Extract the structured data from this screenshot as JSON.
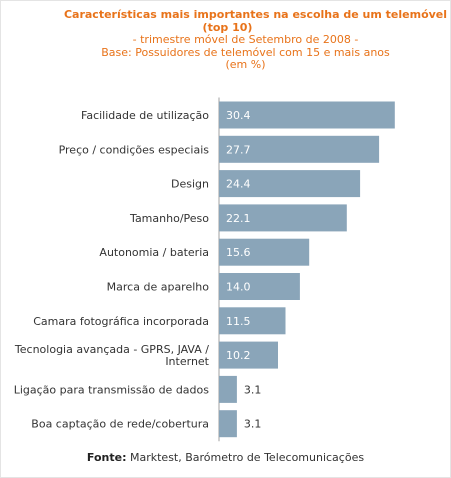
{
  "header": {
    "title_line1": "Características mais importantes na escolha de um telemóvel",
    "title_line2": "(top 10)",
    "subtitle": "- trimestre móvel de Setembro de 2008 -",
    "base": "Base: Possuidores de telemóvel com 15 e mais anos",
    "unit": "(em %)"
  },
  "footer": {
    "source_label": "Fonte:",
    "source_text": "Marktest, Barómetro de Telecomunicações"
  },
  "colors": {
    "bar": "#8aa5b9",
    "title": "#e8731a",
    "label": "#333333",
    "value_inside": "#ffffff",
    "value_outside": "#333333",
    "axis": "#a0a0a0"
  },
  "chart_data": {
    "type": "bar",
    "orientation": "horizontal",
    "categories": [
      "Facilidade de utilização",
      "Preço / condições especiais",
      "Design",
      "Tamanho/Peso",
      "Autonomia / bateria",
      "Marca de aparelho",
      "Camara fotográfica incorporada",
      "Tecnologia avançada - GPRS, JAVA / Internet",
      "Ligação para transmissão de dados",
      "Boa captação de rede/cobertura"
    ],
    "category_lines": [
      [
        "Facilidade de utilização"
      ],
      [
        "Preço / condições especiais"
      ],
      [
        "Design"
      ],
      [
        "Tamanho/Peso"
      ],
      [
        "Autonomia / bateria"
      ],
      [
        "Marca de aparelho"
      ],
      [
        "Camara fotográfica incorporada"
      ],
      [
        "Tecnologia avançada - GPRS, JAVA /",
        "Internet"
      ],
      [
        "Ligação para transmissão de dados"
      ],
      [
        "Boa captação de rede/cobertura"
      ]
    ],
    "values": [
      30.4,
      27.7,
      24.4,
      22.1,
      15.6,
      14.0,
      11.5,
      10.2,
      3.1,
      3.1
    ],
    "value_labels": [
      "30.4",
      "27.7",
      "24.4",
      "22.1",
      "15.6",
      "14.0",
      "11.5",
      "10.2",
      "3.1",
      "3.1"
    ],
    "xlim": [
      0,
      32
    ],
    "grid": false,
    "legend": "none"
  }
}
